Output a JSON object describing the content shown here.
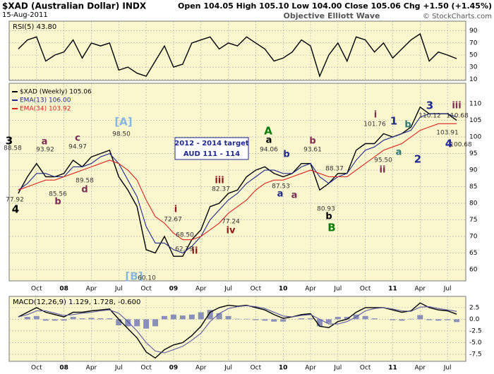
{
  "header": {
    "title": "$XAD (Australian Dollar) INDX",
    "date": "15-Aug-2011",
    "quote": "Open 104.05  High 105.10  Low 104.00  Close 105.06  Chg +1.50 (+1.45%)",
    "watermark": "Objective Elliott Wave",
    "copyright": "© StockCharts.com"
  },
  "chart_data": [
    {
      "type": "line",
      "label": "RSI(5) 43.80",
      "x": [
        "2007-08",
        "2007-09",
        "2007-10",
        "2007-11",
        "2007-12",
        "2008-01",
        "2008-02",
        "2008-03",
        "2008-04",
        "2008-05",
        "2008-06",
        "2008-07",
        "2008-08",
        "2008-09",
        "2008-10",
        "2008-11",
        "2008-12",
        "2009-01",
        "2009-02",
        "2009-03",
        "2009-04",
        "2009-05",
        "2009-06",
        "2009-07",
        "2009-08",
        "2009-09",
        "2009-10",
        "2009-11",
        "2009-12",
        "2010-01",
        "2010-02",
        "2010-03",
        "2010-04",
        "2010-05",
        "2010-06",
        "2010-07",
        "2010-08",
        "2010-09",
        "2010-10",
        "2010-11",
        "2010-12",
        "2011-01",
        "2011-02",
        "2011-03",
        "2011-04",
        "2011-05",
        "2011-06",
        "2011-07",
        "2011-08"
      ],
      "series": [
        {
          "color": "#000000",
          "values": [
            60,
            75,
            80,
            40,
            50,
            55,
            75,
            45,
            70,
            65,
            70,
            25,
            30,
            20,
            15,
            40,
            65,
            30,
            35,
            70,
            75,
            80,
            60,
            70,
            65,
            80,
            70,
            60,
            40,
            45,
            55,
            75,
            65,
            15,
            50,
            70,
            40,
            80,
            75,
            55,
            70,
            45,
            60,
            75,
            85,
            40,
            55,
            50,
            44
          ]
        }
      ],
      "xlim": [
        "2007-07",
        "2011-09"
      ],
      "ylim": [
        8,
        106
      ],
      "yticks": [
        10,
        30,
        50,
        70,
        90
      ]
    },
    {
      "type": "line",
      "x": [
        "2007-08",
        "2007-09",
        "2007-10",
        "2007-11",
        "2007-12",
        "2008-01",
        "2008-02",
        "2008-03",
        "2008-04",
        "2008-05",
        "2008-06",
        "2008-07",
        "2008-08",
        "2008-09",
        "2008-10",
        "2008-11",
        "2008-12",
        "2009-01",
        "2009-02",
        "2009-03",
        "2009-04",
        "2009-05",
        "2009-06",
        "2009-07",
        "2009-08",
        "2009-09",
        "2009-10",
        "2009-11",
        "2009-12",
        "2010-01",
        "2010-02",
        "2010-03",
        "2010-04",
        "2010-05",
        "2010-06",
        "2010-07",
        "2010-08",
        "2010-09",
        "2010-10",
        "2010-11",
        "2010-12",
        "2011-01",
        "2011-02",
        "2011-03",
        "2011-04",
        "2011-05",
        "2011-06",
        "2011-07",
        "2011-08"
      ],
      "series": [
        {
          "name": "$XAD (Weekly) 105.06",
          "color": "#000000",
          "values": [
            83,
            88,
            92,
            88,
            88,
            89,
            93,
            91,
            94,
            95,
            96,
            88,
            84,
            79,
            66,
            65,
            70,
            64,
            64,
            69,
            72,
            79,
            80,
            83,
            84,
            88,
            90,
            91,
            89,
            88,
            89,
            92,
            92,
            84,
            86,
            89,
            89,
            96,
            98,
            98,
            101,
            100,
            101,
            103,
            109,
            107,
            107,
            107,
            105
          ]
        },
        {
          "name": "EMA(13) 106.00",
          "color": "#1f2a8a",
          "values": [
            84,
            86,
            89,
            89,
            88,
            88,
            91,
            91,
            92,
            94,
            95,
            92,
            87,
            82,
            73,
            68,
            68,
            66,
            65,
            67,
            70,
            75,
            78,
            81,
            83,
            86,
            88,
            90,
            90,
            89,
            89,
            91,
            92,
            88,
            86,
            88,
            89,
            93,
            96,
            97,
            99,
            100,
            101,
            102,
            106,
            107,
            107,
            107,
            106
          ]
        },
        {
          "name": "EMA(34) 103.92",
          "color": "#dd2222",
          "values": [
            84,
            85,
            86,
            87,
            87,
            88,
            89,
            90,
            91,
            92,
            93,
            92,
            90,
            87,
            81,
            76,
            74,
            71,
            69,
            69,
            70,
            72,
            74,
            77,
            79,
            81,
            84,
            86,
            87,
            87,
            88,
            89,
            90,
            89,
            88,
            88,
            88,
            90,
            92,
            94,
            96,
            97,
            98,
            100,
            102,
            103,
            104,
            104,
            104
          ]
        }
      ],
      "xlim": [
        "2007-07",
        "2011-09"
      ],
      "ylim": [
        56.6,
        116.2
      ],
      "yticks": [
        60,
        65,
        70,
        75,
        80,
        85,
        90,
        95,
        100,
        105,
        110
      ],
      "xticks": [
        {
          "value": "2007-10",
          "label": "Oct"
        },
        {
          "value": "2008-01",
          "label": "08"
        },
        {
          "value": "2008-04",
          "label": "Apr"
        },
        {
          "value": "2008-07",
          "label": "Jul"
        },
        {
          "value": "2008-10",
          "label": "Oct"
        },
        {
          "value": "2009-01",
          "label": "09"
        },
        {
          "value": "2009-04",
          "label": "Apr"
        },
        {
          "value": "2009-07",
          "label": "Jul"
        },
        {
          "value": "2009-10",
          "label": "Oct"
        },
        {
          "value": "2010-01",
          "label": "10"
        },
        {
          "value": "2010-04",
          "label": "Apr"
        },
        {
          "value": "2010-07",
          "label": "Jul"
        },
        {
          "value": "2010-10",
          "label": "Oct"
        },
        {
          "value": "2011-01",
          "label": "11"
        },
        {
          "value": "2011-04",
          "label": "Apr"
        },
        {
          "value": "2011-07",
          "label": "Jul"
        }
      ],
      "target_box": [
        "2012 - 2014 target",
        "AUD 111 - 114"
      ],
      "annotations": [
        {
          "text": "3",
          "color": "#000000"
        },
        {
          "text": "88.58",
          "color": "#333333"
        },
        {
          "text": "77.92",
          "color": "#333333"
        },
        {
          "text": "4",
          "color": "#000000"
        },
        {
          "text": "a",
          "color": "#7b2d52"
        },
        {
          "text": "93.92",
          "color": "#333333"
        },
        {
          "text": "c",
          "color": "#7b2d52"
        },
        {
          "text": "94.97",
          "color": "#333333"
        },
        {
          "text": "89.58",
          "color": "#333333"
        },
        {
          "text": "d",
          "color": "#7b2d52"
        },
        {
          "text": "85.56",
          "color": "#333333"
        },
        {
          "text": "b",
          "color": "#7b2d52"
        },
        {
          "text": "[A]",
          "color": "#87b5e0"
        },
        {
          "text": "98.50",
          "color": "#333333"
        },
        {
          "text": "[B]",
          "color": "#87b5e0"
        },
        {
          "text": "60.10",
          "color": "#333333"
        },
        {
          "text": "i",
          "color": "#8b1a1a"
        },
        {
          "text": "72.67",
          "color": "#333333"
        },
        {
          "text": "68.50",
          "color": "#333333"
        },
        {
          "text": "62.79",
          "color": "#333333"
        },
        {
          "text": "ii",
          "color": "#8b1a1a"
        },
        {
          "text": "iii",
          "color": "#8b1a1a"
        },
        {
          "text": "82.37",
          "color": "#333333"
        },
        {
          "text": "77.24",
          "color": "#333333"
        },
        {
          "text": "iv",
          "color": "#8b1a1a"
        },
        {
          "text": "A",
          "color": "#0a7a0a"
        },
        {
          "text": "a",
          "color": "#000000"
        },
        {
          "text": "94.06",
          "color": "#333333"
        },
        {
          "text": "b",
          "color": "#1f2a8a"
        },
        {
          "text": "87.53",
          "color": "#333333"
        },
        {
          "text": "a",
          "color": "#1f2a8a"
        },
        {
          "text": "a",
          "color": "#7b2d52"
        },
        {
          "text": "b",
          "color": "#7b2d52"
        },
        {
          "text": "93.61",
          "color": "#333333"
        },
        {
          "text": "88.37",
          "color": "#333333"
        },
        {
          "text": "80.93",
          "color": "#333333"
        },
        {
          "text": "b",
          "color": "#000000"
        },
        {
          "text": "B",
          "color": "#0a7a0a"
        },
        {
          "text": "i",
          "color": "#7b2d52"
        },
        {
          "text": "101.76",
          "color": "#333333"
        },
        {
          "text": "1",
          "color": "#1f2a8a"
        },
        {
          "text": "b",
          "color": "#2a7a7a"
        },
        {
          "text": "a",
          "color": "#2a7a7a"
        },
        {
          "text": "95.50",
          "color": "#333333"
        },
        {
          "text": "ii",
          "color": "#7b2d52"
        },
        {
          "text": "2",
          "color": "#1f2a8a"
        },
        {
          "text": "3",
          "color": "#1f2a8a"
        },
        {
          "text": "110.12",
          "color": "#333333"
        },
        {
          "text": "iii",
          "color": "#7b2d52"
        },
        {
          "text": "110.68",
          "color": "#333333"
        },
        {
          "text": "103.91",
          "color": "#333333"
        },
        {
          "text": "4",
          "color": "#1f2a8a"
        },
        {
          "text": "100.68",
          "color": "#333333"
        }
      ]
    },
    {
      "type": "line",
      "label": "MACD(12,26,9) 1.129, 1.728, -0.600",
      "x": [
        "2007-08",
        "2007-09",
        "2007-10",
        "2007-11",
        "2007-12",
        "2008-01",
        "2008-02",
        "2008-03",
        "2008-04",
        "2008-05",
        "2008-06",
        "2008-07",
        "2008-08",
        "2008-09",
        "2008-10",
        "2008-11",
        "2008-12",
        "2009-01",
        "2009-02",
        "2009-03",
        "2009-04",
        "2009-05",
        "2009-06",
        "2009-07",
        "2009-08",
        "2009-09",
        "2009-10",
        "2009-11",
        "2009-12",
        "2010-01",
        "2010-02",
        "2010-03",
        "2010-04",
        "2010-05",
        "2010-06",
        "2010-07",
        "2010-08",
        "2010-09",
        "2010-10",
        "2010-11",
        "2010-12",
        "2011-01",
        "2011-02",
        "2011-03",
        "2011-04",
        "2011-05",
        "2011-06",
        "2011-07",
        "2011-08"
      ],
      "series": [
        {
          "color": "#000000",
          "values": [
            0.5,
            1.5,
            2.5,
            1.5,
            1,
            0.5,
            1.5,
            1.5,
            1.8,
            2,
            2.2,
            0,
            -2,
            -4,
            -7,
            -8.3,
            -6.5,
            -5.5,
            -5,
            -3.5,
            -1.5,
            1.5,
            2.5,
            3,
            2.8,
            3,
            2.5,
            2,
            1,
            0.2,
            0.5,
            1,
            1.2,
            -1.5,
            -1.8,
            -0.5,
            0,
            1.5,
            2.5,
            2.5,
            2.5,
            2,
            1.5,
            1.8,
            3.5,
            2.5,
            2,
            1.8,
            1.1
          ]
        },
        {
          "color": "#5a5aa0",
          "values": [
            0.5,
            1,
            1.8,
            1.8,
            1.3,
            0.8,
            1,
            1.3,
            1.5,
            1.8,
            2,
            1.3,
            -0.5,
            -2.5,
            -5,
            -6.8,
            -7.2,
            -6.5,
            -5.8,
            -4.5,
            -3,
            -0.5,
            1.2,
            2.3,
            2.7,
            2.9,
            2.7,
            2.3,
            1.5,
            0.7,
            0.5,
            0.8,
            1,
            0,
            -1,
            -1,
            -0.5,
            0.5,
            1.8,
            2.3,
            2.5,
            2.2,
            1.8,
            1.7,
            2.6,
            2.7,
            2.3,
            2,
            1.7
          ]
        }
      ],
      "histogram": {
        "color": "#8a8fb8",
        "values": [
          0,
          0.5,
          0.7,
          -0.3,
          -0.3,
          -0.3,
          0.5,
          0.2,
          0.3,
          0.2,
          0.2,
          -1.3,
          -1.5,
          -1.5,
          -2,
          -1.5,
          0.7,
          1,
          0.8,
          1,
          1.5,
          2,
          1.3,
          0.7,
          0.1,
          0.1,
          -0.2,
          -0.3,
          -0.5,
          -0.5,
          0,
          0.2,
          0.2,
          -1.5,
          -0.8,
          0.5,
          0.5,
          1,
          0.7,
          0.2,
          0,
          -0.2,
          -0.3,
          0.1,
          0.9,
          -0.2,
          -0.3,
          -0.2,
          -0.6
        ]
      },
      "xlim": [
        "2007-07",
        "2011-09"
      ],
      "ylim": [
        -9,
        4.9
      ],
      "yticks": [
        {
          "value": -7.5,
          "label": "-7.5"
        },
        {
          "value": -5,
          "label": "-5.0"
        },
        {
          "value": -2.5,
          "label": "-2.5"
        },
        {
          "value": 0,
          "label": "0.0"
        },
        {
          "value": 2.5,
          "label": "2.5"
        }
      ],
      "xticks": [
        {
          "value": "2007-10",
          "label": "Oct"
        },
        {
          "value": "2008-01",
          "label": "08"
        },
        {
          "value": "2008-04",
          "label": "Apr"
        },
        {
          "value": "2008-07",
          "label": "Jul"
        },
        {
          "value": "2008-10",
          "label": "Oct"
        },
        {
          "value": "2009-01",
          "label": "09"
        },
        {
          "value": "2009-04",
          "label": "Apr"
        },
        {
          "value": "2009-07",
          "label": "Jul"
        },
        {
          "value": "2009-10",
          "label": "Oct"
        },
        {
          "value": "2010-01",
          "label": "10"
        },
        {
          "value": "2010-04",
          "label": "Apr"
        },
        {
          "value": "2010-07",
          "label": "Jul"
        },
        {
          "value": "2010-10",
          "label": "Oct"
        },
        {
          "value": "2011-01",
          "label": "11"
        },
        {
          "value": "2011-04",
          "label": "Apr"
        },
        {
          "value": "2011-07",
          "label": "Jul"
        }
      ]
    }
  ]
}
